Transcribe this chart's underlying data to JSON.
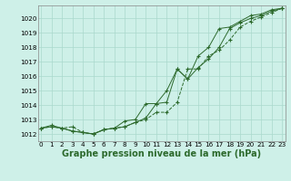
{
  "line1": {
    "x": [
      0,
      1,
      2,
      3,
      4,
      5,
      6,
      7,
      8,
      9,
      10,
      11,
      12,
      13,
      14,
      15,
      16,
      17,
      18,
      19,
      20,
      21,
      22,
      23
    ],
    "y": [
      1012.4,
      1012.6,
      1012.4,
      1012.2,
      1012.1,
      1012.0,
      1012.3,
      1012.4,
      1012.9,
      1013.0,
      1014.1,
      1014.1,
      1014.2,
      1016.5,
      1015.8,
      1016.6,
      1017.2,
      1018.0,
      1019.3,
      1019.7,
      1020.0,
      1020.2,
      1020.5,
      1020.7
    ]
  },
  "line2": {
    "x": [
      0,
      1,
      2,
      3,
      4,
      5,
      6,
      7,
      8,
      9,
      10,
      11,
      12,
      13,
      14,
      15,
      16,
      17,
      18,
      19,
      20,
      21,
      22,
      23
    ],
    "y": [
      1012.4,
      1012.5,
      1012.4,
      1012.5,
      1012.1,
      1012.0,
      1012.3,
      1012.4,
      1012.5,
      1012.8,
      1013.0,
      1013.5,
      1013.5,
      1014.2,
      1016.5,
      1016.5,
      1017.4,
      1017.8,
      1018.5,
      1019.4,
      1019.8,
      1020.1,
      1020.4,
      1020.7
    ]
  },
  "line3": {
    "x": [
      0,
      1,
      2,
      3,
      4,
      5,
      6,
      7,
      8,
      9,
      10,
      11,
      12,
      13,
      14,
      15,
      16,
      17,
      18,
      19,
      20,
      21,
      22,
      23
    ],
    "y": [
      1012.4,
      1012.5,
      1012.4,
      1012.2,
      1012.1,
      1012.0,
      1012.3,
      1012.4,
      1012.5,
      1012.8,
      1013.1,
      1014.1,
      1015.0,
      1016.5,
      1015.8,
      1017.4,
      1018.0,
      1019.3,
      1019.4,
      1019.8,
      1020.2,
      1020.3,
      1020.6,
      1020.7
    ]
  },
  "line_color": "#2d6a2d",
  "bg_color": "#cef0e8",
  "grid_color": "#aad8cc",
  "xlabel": "Graphe pression niveau de la mer (hPa)",
  "ylabel_ticks": [
    1012,
    1013,
    1014,
    1015,
    1016,
    1017,
    1018,
    1019,
    1020
  ],
  "xlim": [
    -0.3,
    23.3
  ],
  "ylim": [
    1011.5,
    1020.9
  ],
  "xtick_labels": [
    "0",
    "1",
    "2",
    "3",
    "4",
    "5",
    "6",
    "7",
    "8",
    "9",
    "10",
    "11",
    "12",
    "13",
    "14",
    "15",
    "16",
    "17",
    "18",
    "19",
    "20",
    "21",
    "22",
    "23"
  ],
  "tick_fontsize": 5.2,
  "label_fontsize": 7.0
}
